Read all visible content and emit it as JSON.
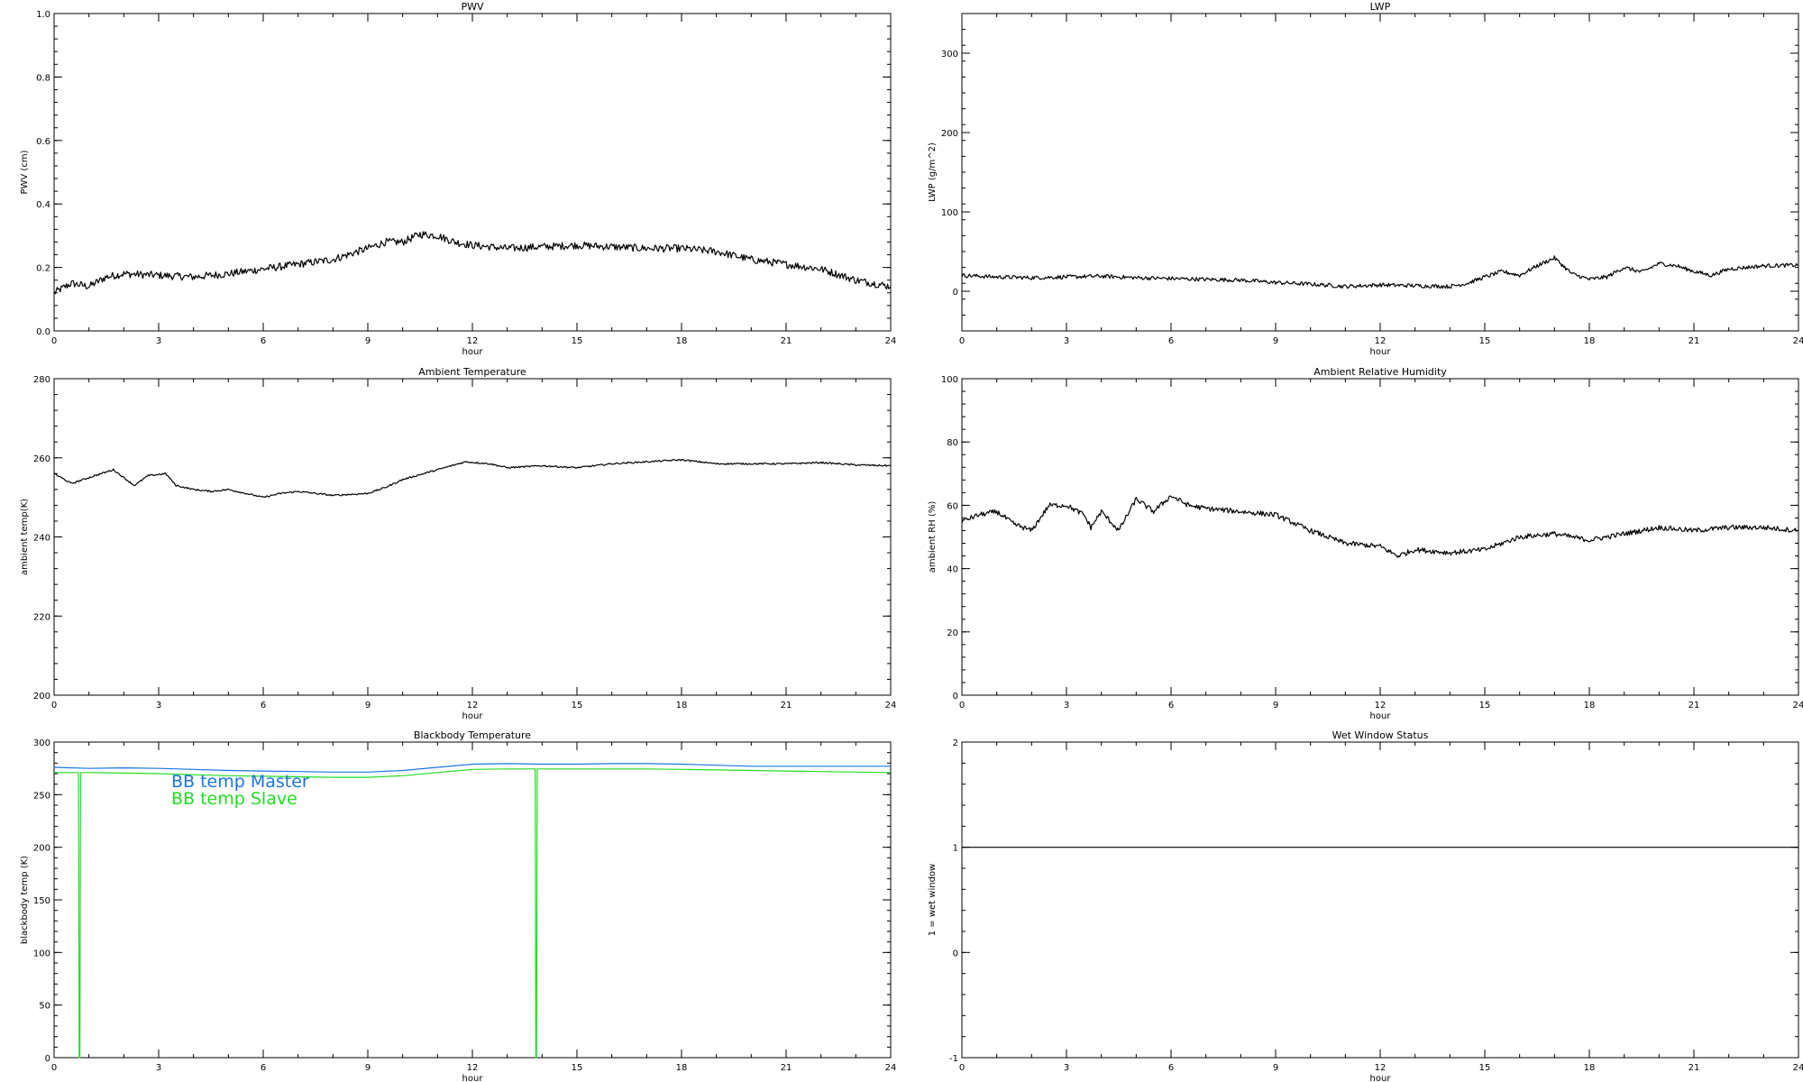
{
  "chart_data": [
    {
      "id": "pwv",
      "type": "line",
      "title": "PWV",
      "xlabel": "hour",
      "ylabel": "PWV (cm)",
      "xlim": [
        0,
        24
      ],
      "ylim": [
        0,
        1.0
      ],
      "xticks": [
        0,
        3,
        6,
        9,
        12,
        15,
        18,
        21,
        24
      ],
      "xtick_labels": [
        "0",
        "3",
        "6",
        "9",
        "12",
        "15",
        "18",
        "21",
        "24"
      ],
      "yticks": [
        0,
        0.2,
        0.4,
        0.6,
        0.8,
        1.0
      ],
      "ytick_labels": [
        "0.0",
        "0.2",
        "0.4",
        "0.6",
        "0.8",
        "1.0"
      ],
      "legend": [],
      "series": [
        {
          "color": "#000000",
          "noise": 0.012,
          "x": [
            0,
            0.5,
            1,
            1.5,
            2,
            3,
            4,
            5,
            6,
            7,
            8,
            9,
            9.5,
            10,
            10.5,
            11,
            11.5,
            12,
            13,
            14,
            15,
            16,
            17,
            18,
            19,
            20,
            21,
            22,
            23,
            23.5,
            24
          ],
          "y": [
            0.12,
            0.15,
            0.14,
            0.17,
            0.18,
            0.175,
            0.17,
            0.18,
            0.195,
            0.21,
            0.225,
            0.26,
            0.28,
            0.28,
            0.305,
            0.3,
            0.28,
            0.27,
            0.26,
            0.265,
            0.27,
            0.265,
            0.26,
            0.26,
            0.25,
            0.225,
            0.21,
            0.195,
            0.16,
            0.15,
            0.14
          ]
        }
      ]
    },
    {
      "id": "lwp",
      "type": "line",
      "title": "LWP",
      "xlabel": "hour",
      "ylabel": "LWP (g/m^2)",
      "xlim": [
        0,
        24
      ],
      "ylim": [
        -50,
        350
      ],
      "xticks": [
        0,
        3,
        6,
        9,
        12,
        15,
        18,
        21,
        24
      ],
      "xtick_labels": [
        "0",
        "3",
        "6",
        "9",
        "12",
        "15",
        "18",
        "21",
        "24"
      ],
      "yticks": [
        0,
        100,
        200,
        300
      ],
      "ytick_labels": [
        "0",
        "100",
        "200",
        "300"
      ],
      "legend": [],
      "series": [
        {
          "color": "#000000",
          "noise": 2.5,
          "x": [
            0,
            1,
            2,
            3,
            4,
            5,
            6,
            7,
            8,
            9,
            10,
            11,
            12,
            13,
            14,
            14.5,
            15,
            15.5,
            16,
            16.5,
            17,
            17.5,
            18,
            18.5,
            19,
            19.5,
            20,
            20.5,
            21,
            21.5,
            22,
            23,
            24
          ],
          "y": [
            20,
            18,
            17,
            18,
            19,
            17,
            16,
            15,
            14,
            11,
            9,
            6,
            8,
            7,
            6,
            10,
            18,
            25,
            20,
            32,
            42,
            22,
            15,
            18,
            30,
            24,
            35,
            32,
            25,
            20,
            28,
            32,
            33
          ]
        }
      ]
    },
    {
      "id": "ambient-temperature",
      "type": "line",
      "title": "Ambient Temperature",
      "xlabel": "hour",
      "ylabel": "ambient temp(K)",
      "xlim": [
        0,
        24
      ],
      "ylim": [
        200,
        280
      ],
      "xticks": [
        0,
        3,
        6,
        9,
        12,
        15,
        18,
        21,
        24
      ],
      "xtick_labels": [
        "0",
        "3",
        "6",
        "9",
        "12",
        "15",
        "18",
        "21",
        "24"
      ],
      "yticks": [
        200,
        220,
        240,
        260,
        280
      ],
      "ytick_labels": [
        "200",
        "220",
        "240",
        "260",
        "280"
      ],
      "legend": [],
      "series": [
        {
          "color": "#000000",
          "noise": 0.2,
          "x": [
            0,
            0.5,
            1,
            1.7,
            2.3,
            2.7,
            3.2,
            3.5,
            4,
            4.5,
            5,
            6,
            6.5,
            7,
            8,
            9,
            9.5,
            10,
            11,
            11.8,
            12.5,
            13,
            14,
            15,
            16,
            17,
            18,
            19,
            20,
            21,
            22,
            23,
            24
          ],
          "y": [
            256,
            253.5,
            255,
            257,
            253,
            255.5,
            256,
            253,
            252,
            251.5,
            252,
            250,
            251,
            251.5,
            250.5,
            251,
            252.5,
            254.5,
            257,
            259,
            258.5,
            257.5,
            258,
            257.5,
            258.5,
            259,
            259.5,
            258.5,
            258.5,
            258.5,
            258.8,
            258.2,
            258
          ]
        }
      ]
    },
    {
      "id": "ambient-relative-humidity",
      "type": "line",
      "title": "Ambient Relative Humidity",
      "xlabel": "hour",
      "ylabel": "ambient RH (%)",
      "xlim": [
        0,
        24
      ],
      "ylim": [
        0,
        100
      ],
      "xticks": [
        0,
        3,
        6,
        9,
        12,
        15,
        18,
        21,
        24
      ],
      "xtick_labels": [
        "0",
        "3",
        "6",
        "9",
        "12",
        "15",
        "18",
        "21",
        "24"
      ],
      "yticks": [
        0,
        20,
        40,
        60,
        80,
        100
      ],
      "ytick_labels": [
        "0",
        "20",
        "40",
        "60",
        "80",
        "100"
      ],
      "legend": [],
      "series": [
        {
          "color": "#000000",
          "noise": 0.8,
          "x": [
            0,
            0.5,
            1,
            1.5,
            2,
            2.5,
            3,
            3.5,
            3.7,
            4,
            4.5,
            5,
            5.5,
            6,
            6.5,
            7,
            8,
            9,
            10,
            11,
            12,
            12.5,
            13,
            14,
            15,
            16,
            17,
            18,
            19,
            20,
            21,
            22,
            23,
            24
          ],
          "y": [
            55,
            57,
            58,
            54,
            52,
            60,
            60,
            57,
            53,
            58,
            52,
            62,
            58,
            63,
            60,
            59,
            58,
            57,
            52,
            48,
            47,
            44,
            46,
            45,
            46,
            50,
            51,
            49,
            51,
            53,
            52,
            53,
            53,
            52
          ]
        }
      ]
    },
    {
      "id": "blackbody-temperature",
      "type": "line",
      "title": "Blackbody Temperature",
      "xlabel": "hour",
      "ylabel": "blackbody temp (K)",
      "xlim": [
        0,
        24
      ],
      "ylim": [
        0,
        300
      ],
      "xticks": [
        0,
        3,
        6,
        9,
        12,
        15,
        18,
        21,
        24
      ],
      "xtick_labels": [
        "0",
        "3",
        "6",
        "9",
        "12",
        "15",
        "18",
        "21",
        "24"
      ],
      "yticks": [
        0,
        50,
        100,
        150,
        200,
        250,
        300
      ],
      "ytick_labels": [
        "0",
        "50",
        "100",
        "150",
        "200",
        "250",
        "300"
      ],
      "legend": [
        {
          "label": "BB temp Master",
          "color": "#1a75e6"
        },
        {
          "label": "BB temp Slave",
          "color": "#22dd22"
        }
      ],
      "series": [
        {
          "name": "BB temp Master",
          "color": "#1a75e6",
          "noise": 0,
          "x": [
            0,
            1,
            2,
            3,
            4,
            5,
            6,
            7,
            8,
            9,
            10,
            11,
            12,
            13,
            14,
            15,
            16,
            17,
            18,
            19,
            20,
            21,
            22,
            23,
            24
          ],
          "y": [
            276,
            275,
            275.5,
            275,
            274,
            273,
            272.5,
            272,
            271.5,
            271.5,
            273,
            276,
            279,
            279.5,
            279,
            279,
            279.5,
            279.5,
            279,
            278,
            277,
            277,
            277,
            277,
            277
          ]
        },
        {
          "name": "BB temp Slave",
          "color": "#22dd22",
          "noise": 0,
          "x": [
            0,
            0.7,
            0.72,
            0.74,
            0.76,
            1,
            2,
            3,
            4,
            5,
            6,
            7,
            8,
            9,
            10,
            11,
            12,
            13,
            13.8,
            13.82,
            13.84,
            13.86,
            14,
            15,
            16,
            17,
            18,
            19,
            20,
            21,
            22,
            23,
            24
          ],
          "y": [
            271,
            271,
            0,
            0,
            271,
            271,
            270.5,
            270,
            269,
            268,
            267.5,
            267,
            266.5,
            266.5,
            268,
            271,
            274,
            274.5,
            274.5,
            0,
            0,
            274.5,
            274.5,
            274.5,
            274.5,
            274.5,
            274,
            273.5,
            273,
            272.5,
            272,
            271.5,
            271
          ]
        }
      ]
    },
    {
      "id": "wet-window-status",
      "type": "line",
      "title": "Wet Window Status",
      "xlabel": "hour",
      "ylabel": "1 = wet window",
      "xlim": [
        0,
        24
      ],
      "ylim": [
        -1,
        2
      ],
      "xticks": [
        0,
        3,
        6,
        9,
        12,
        15,
        18,
        21,
        24
      ],
      "xtick_labels": [
        "0",
        "3",
        "6",
        "9",
        "12",
        "15",
        "18",
        "21",
        "24"
      ],
      "yticks": [
        -1,
        0,
        1,
        2
      ],
      "ytick_labels": [
        "-1",
        "0",
        "1",
        "2"
      ],
      "legend": [],
      "series": [
        {
          "color": "#000000",
          "noise": 0,
          "x": [
            0,
            24
          ],
          "y": [
            1,
            1
          ]
        }
      ]
    }
  ]
}
